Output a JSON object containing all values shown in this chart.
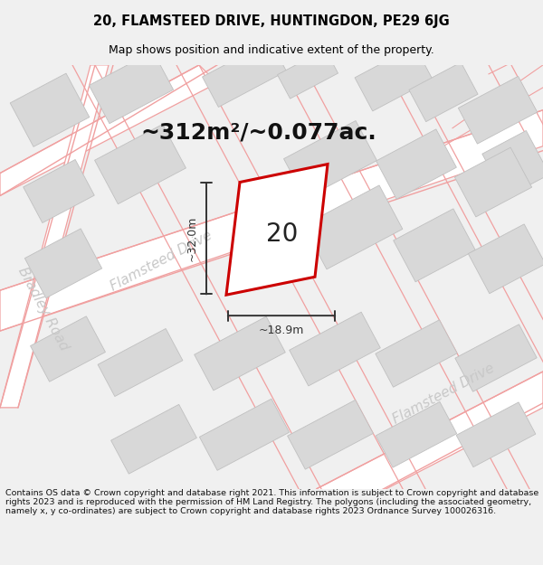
{
  "title_line1": "20, FLAMSTEED DRIVE, HUNTINGDON, PE29 6JG",
  "title_line2": "Map shows position and indicative extent of the property.",
  "area_text": "~312m²/~0.077ac.",
  "property_label": "20",
  "dim_vertical": "~32.0m",
  "dim_horizontal": "~18.9m",
  "road_label_flamsteed_mid": "Flamsteed Drive",
  "road_label_flamsteed_br": "Flamsteed Drive",
  "road_label_bradley": "Bradley Road",
  "copyright_text": "Contains OS data © Crown copyright and database right 2021. This information is subject to Crown copyright and database rights 2023 and is reproduced with the permission of HM Land Registry. The polygons (including the associated geometry, namely x, y co-ordinates) are subject to Crown copyright and database rights 2023 Ordnance Survey 100026316.",
  "bg_color": "#f0f0f0",
  "map_bg": "#ffffff",
  "building_fill": "#d8d8d8",
  "building_edge": "#c0c0c0",
  "road_line_color": "#f0a0a0",
  "road_fill_color": "#ffffff",
  "property_edge": "#cc0000",
  "property_fill": "#ffffff",
  "dim_color": "#333333",
  "title_color": "#000000",
  "road_text_color": "#c8c8c8",
  "area_text_color": "#111111",
  "title_fontsize": 10.5,
  "subtitle_fontsize": 9,
  "area_fontsize": 18,
  "label_fontsize": 20,
  "dim_fontsize": 9,
  "road_label_fontsize": 11,
  "copyright_fontsize": 6.8
}
